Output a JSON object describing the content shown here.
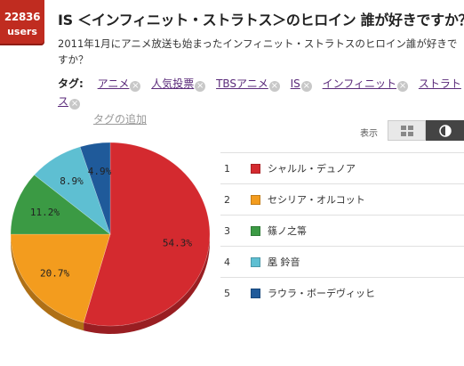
{
  "badge": {
    "count": "22836",
    "unit": "users"
  },
  "title": "IS ＜インフィニット・ストラトス＞のヒロイン 誰が好きですか？",
  "description": "2011年1月にアニメ放送も始まったインフィニット・ストラトスのヒロイン誰が好きですか？",
  "tags": {
    "label": "タグ:",
    "items": [
      "アニメ",
      "人気投票",
      "TBSアニメ",
      "IS",
      "インフィニット",
      "ストラトス"
    ],
    "remove_symbol": "×",
    "add_label": "タグの追加"
  },
  "view": {
    "label": "表示"
  },
  "chart_data": {
    "type": "pie",
    "series": [
      {
        "rank": "1",
        "name": "シャルル・デュノア",
        "value": 54.3,
        "label": "54.3%",
        "color": "#d42a2f"
      },
      {
        "rank": "2",
        "name": "セシリア・オルコット",
        "value": 20.7,
        "label": "20.7%",
        "color": "#f39c1e"
      },
      {
        "rank": "3",
        "name": "篠ノ之箒",
        "value": 11.2,
        "label": "11.2%",
        "color": "#3b9a44"
      },
      {
        "rank": "4",
        "name": "凰 鈴音",
        "value": 8.9,
        "label": "8.9%",
        "color": "#5ebfd2"
      },
      {
        "rank": "5",
        "name": "ラウラ・ボーデヴィッヒ",
        "value": 4.9,
        "label": "4.9%",
        "color": "#1f5a9a"
      }
    ]
  }
}
